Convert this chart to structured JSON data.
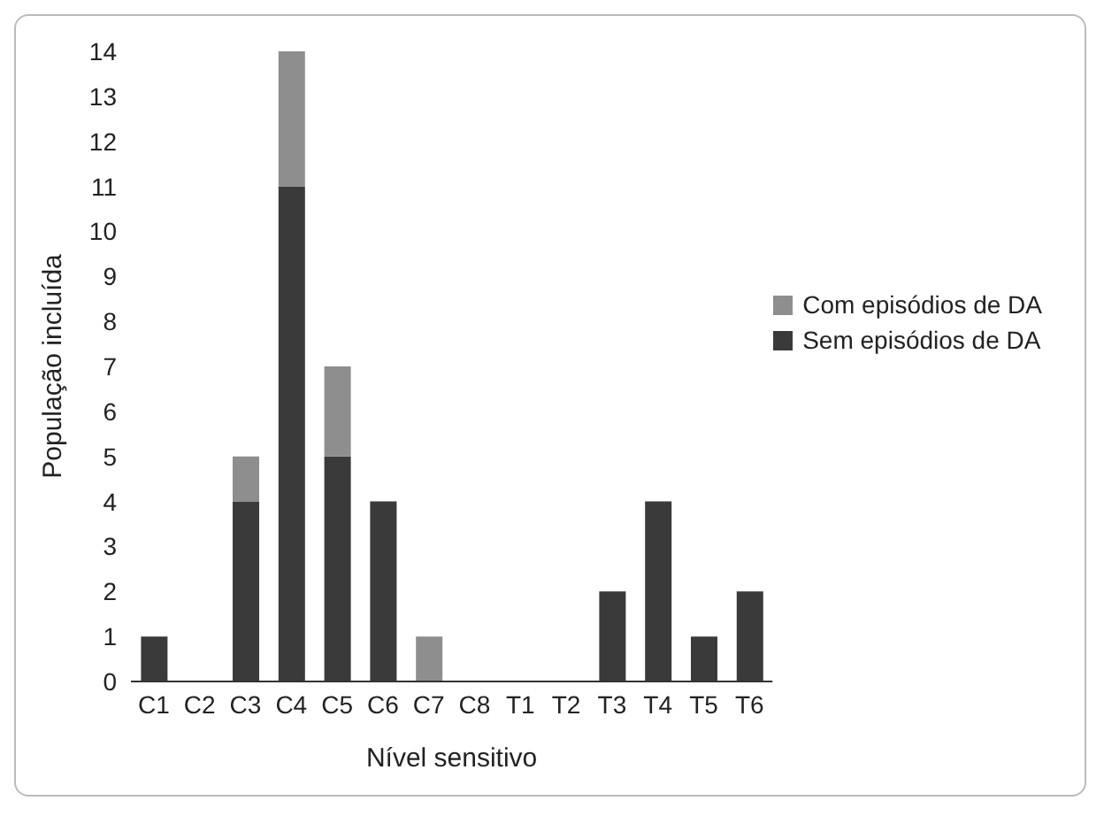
{
  "chart_data": {
    "type": "bar",
    "stacked": true,
    "xlabel": "Nível sensitivo",
    "ylabel": "População incluída",
    "categories": [
      "C1",
      "C2",
      "C3",
      "C4",
      "C5",
      "C6",
      "C7",
      "C8",
      "T1",
      "T2",
      "T3",
      "T4",
      "T5",
      "T6"
    ],
    "series": [
      {
        "name": "Sem episódios de DA",
        "color": "#3a3a3a",
        "values": [
          1,
          0,
          4,
          11,
          5,
          4,
          0,
          0,
          0,
          0,
          2,
          4,
          1,
          2
        ]
      },
      {
        "name": "Com episódios de DA",
        "color": "#8e8e8e",
        "values": [
          0,
          0,
          1,
          3,
          2,
          0,
          1,
          0,
          0,
          0,
          0,
          0,
          0,
          0
        ]
      }
    ],
    "ylim": [
      0,
      14
    ],
    "yticks": [
      0,
      1,
      2,
      3,
      4,
      5,
      6,
      7,
      8,
      9,
      10,
      11,
      12,
      13,
      14
    ],
    "grid": false,
    "legend": "right"
  }
}
